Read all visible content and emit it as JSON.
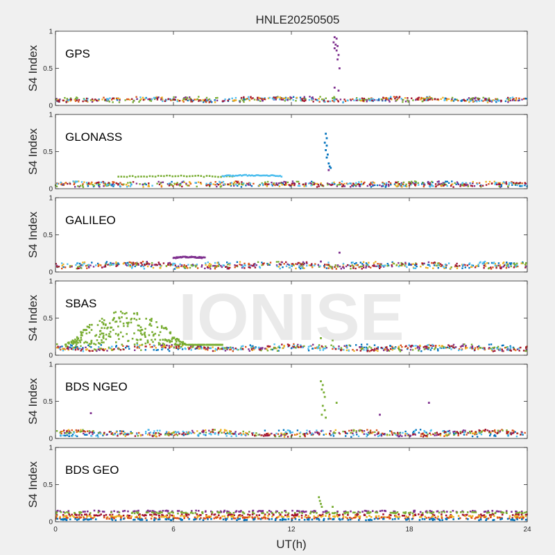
{
  "title": "HNLE20250505",
  "watermark": "IONISE",
  "xlabel": "UT(h)",
  "colors": {
    "figure_bg": "#f0f0f0",
    "axes_bg": "#ffffff",
    "series": [
      "#0072BD",
      "#D95319",
      "#EDB120",
      "#7E2F8E",
      "#77AC30",
      "#4DBEEE",
      "#A2142F"
    ]
  },
  "chart_data": [
    {
      "type": "scatter",
      "panel": "GPS",
      "ylabel": "S4 Index",
      "xlim": [
        0,
        24
      ],
      "ylim": [
        0,
        1
      ],
      "xticks": [
        "0",
        "6",
        "12",
        "18",
        "24"
      ],
      "yticks": [
        "0",
        "0.5",
        "1"
      ],
      "baseline": {
        "mean": 0.08,
        "spread": 0.04,
        "series_count": 7
      },
      "spikes": [
        {
          "x": 14.2,
          "y": 0.92
        },
        {
          "x": 14.3,
          "y": 0.9
        },
        {
          "x": 14.15,
          "y": 0.85
        },
        {
          "x": 14.25,
          "y": 0.82
        },
        {
          "x": 14.35,
          "y": 0.8
        },
        {
          "x": 14.2,
          "y": 0.77
        },
        {
          "x": 14.3,
          "y": 0.74
        },
        {
          "x": 14.4,
          "y": 0.68
        },
        {
          "x": 14.35,
          "y": 0.62
        },
        {
          "x": 14.45,
          "y": 0.5
        },
        {
          "x": 14.2,
          "y": 0.24
        },
        {
          "x": 14.4,
          "y": 0.2
        }
      ]
    },
    {
      "type": "scatter",
      "panel": "GLONASS",
      "ylabel": "S4 Index",
      "xlim": [
        0,
        24
      ],
      "ylim": [
        0,
        1
      ],
      "xticks": [
        "0",
        "6",
        "12",
        "18",
        "24"
      ],
      "yticks": [
        "0",
        "0.5",
        "1"
      ],
      "baseline": {
        "mean": 0.06,
        "spread": 0.04,
        "series_count": 7
      },
      "arcs": [
        {
          "x_start": 3.2,
          "x_end": 9.0,
          "y": 0.16,
          "color": "#77AC30"
        },
        {
          "x_start": 8.5,
          "x_end": 11.5,
          "y": 0.17,
          "color": "#4DBEEE"
        }
      ],
      "spikes": [
        {
          "x": 13.75,
          "y": 0.74
        },
        {
          "x": 13.8,
          "y": 0.68
        },
        {
          "x": 13.7,
          "y": 0.62
        },
        {
          "x": 13.8,
          "y": 0.58
        },
        {
          "x": 13.75,
          "y": 0.52
        },
        {
          "x": 13.85,
          "y": 0.46
        },
        {
          "x": 13.8,
          "y": 0.42
        },
        {
          "x": 13.9,
          "y": 0.34
        },
        {
          "x": 13.95,
          "y": 0.3
        },
        {
          "x": 14.0,
          "y": 0.28
        },
        {
          "x": 13.9,
          "y": 0.25
        }
      ]
    },
    {
      "type": "scatter",
      "panel": "GALILEO",
      "ylabel": "S4 Index",
      "xlim": [
        0,
        24
      ],
      "ylim": [
        0,
        1
      ],
      "xticks": [
        "0",
        "6",
        "12",
        "18",
        "24"
      ],
      "yticks": [
        "0",
        "0.5",
        "1"
      ],
      "baseline": {
        "mean": 0.09,
        "spread": 0.05,
        "series_count": 7
      },
      "arcs": [
        {
          "x_start": 6.0,
          "x_end": 7.6,
          "y": 0.19,
          "color": "#7E2F8E"
        }
      ],
      "spikes": [
        {
          "x": 14.45,
          "y": 0.26
        },
        {
          "x": 13.5,
          "y": 0.14
        }
      ]
    },
    {
      "type": "scatter",
      "panel": "SBAS",
      "ylabel": "S4 Index",
      "xlim": [
        0,
        24
      ],
      "ylim": [
        0,
        1
      ],
      "xticks": [
        "0",
        "6",
        "12",
        "18",
        "24"
      ],
      "yticks": [
        "0",
        "0.5",
        "1"
      ],
      "baseline": {
        "mean": 0.1,
        "spread": 0.05,
        "series_count": 7
      },
      "scatter_cloud": {
        "x_start": 0.5,
        "x_end": 8.5,
        "y_peak": 0.6,
        "color": "#77AC30"
      },
      "spikes": [
        {
          "x": 13.5,
          "y": 0.23
        },
        {
          "x": 14.1,
          "y": 0.2
        }
      ]
    },
    {
      "type": "scatter",
      "panel": "BDS NGEO",
      "ylabel": "S4 Index",
      "xlim": [
        0,
        24
      ],
      "ylim": [
        0,
        1
      ],
      "xticks": [
        "0",
        "6",
        "12",
        "18",
        "24"
      ],
      "yticks": [
        "0",
        "0.5",
        "1"
      ],
      "baseline": {
        "mean": 0.07,
        "spread": 0.05,
        "series_count": 7
      },
      "spikes": [
        {
          "x": 13.5,
          "y": 0.77
        },
        {
          "x": 13.6,
          "y": 0.72
        },
        {
          "x": 13.55,
          "y": 0.66
        },
        {
          "x": 13.65,
          "y": 0.62
        },
        {
          "x": 13.7,
          "y": 0.56
        },
        {
          "x": 13.6,
          "y": 0.44
        },
        {
          "x": 13.7,
          "y": 0.38
        },
        {
          "x": 13.55,
          "y": 0.32
        },
        {
          "x": 13.75,
          "y": 0.28
        },
        {
          "x": 14.3,
          "y": 0.48
        },
        {
          "x": 16.5,
          "y": 0.32
        },
        {
          "x": 19.0,
          "y": 0.48
        },
        {
          "x": 1.8,
          "y": 0.34
        }
      ]
    },
    {
      "type": "scatter",
      "panel": "BDS GEO",
      "ylabel": "S4 Index",
      "xlim": [
        0,
        24
      ],
      "ylim": [
        0,
        1
      ],
      "xticks": [
        "0",
        "6",
        "12",
        "18",
        "24"
      ],
      "yticks": [
        "0",
        "0.5",
        "1"
      ],
      "flat_series": [
        {
          "y": 0.14,
          "color": "#7E2F8E"
        },
        {
          "y": 0.12,
          "color": "#77AC30"
        },
        {
          "y": 0.09,
          "color": "#A2142F"
        },
        {
          "y": 0.07,
          "color": "#EDB120"
        },
        {
          "y": 0.05,
          "color": "#D95319"
        },
        {
          "y": 0.03,
          "color": "#0072BD"
        }
      ],
      "spikes": [
        {
          "x": 13.4,
          "y": 0.33
        },
        {
          "x": 13.45,
          "y": 0.28
        },
        {
          "x": 13.5,
          "y": 0.24
        },
        {
          "x": 13.55,
          "y": 0.2
        },
        {
          "x": 14.1,
          "y": 0.2
        }
      ]
    }
  ]
}
